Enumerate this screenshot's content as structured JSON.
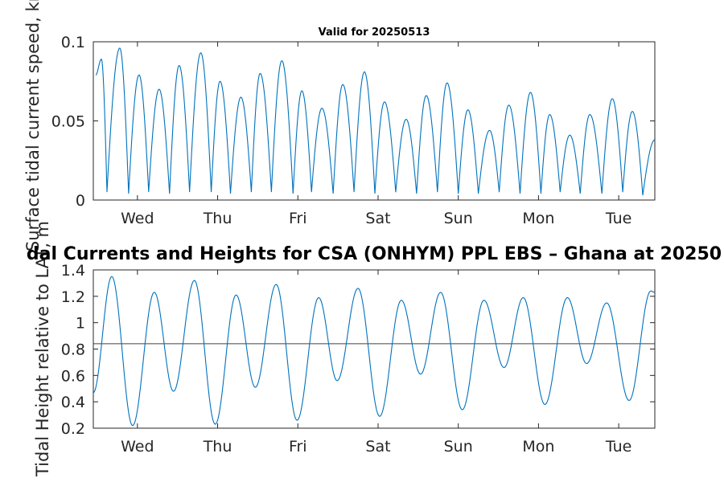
{
  "figure": {
    "title_top": "Valid for 20250513",
    "title_bottom": "dal Currents and Heights for CSA (ONHYM) PPL EBS  – Ghana at 20250"
  },
  "chart_data": [
    {
      "type": "line",
      "title": "Valid for 20250513",
      "ylabel": "Surface tidal current speed, kn",
      "xlabel": "",
      "x_categories": [
        "Wed",
        "Thu",
        "Fri",
        "Sat",
        "Sun",
        "Mon",
        "Tue"
      ],
      "xlim_days": [
        -0.55,
        6.45
      ],
      "ylim": [
        0,
        0.1
      ],
      "yticks": [
        "0",
        "0.05",
        "0.1"
      ],
      "grid": false,
      "line_color": "#0072BD",
      "series": [
        {
          "peaks": [
            {
              "x": -0.52,
              "y": 0.079
            },
            {
              "x": -0.45,
              "y": 0.089
            },
            {
              "x": -0.22,
              "y": 0.096
            },
            {
              "x": 0.02,
              "y": 0.079
            },
            {
              "x": 0.27,
              "y": 0.07
            },
            {
              "x": 0.52,
              "y": 0.085
            },
            {
              "x": 0.79,
              "y": 0.093
            },
            {
              "x": 1.03,
              "y": 0.075
            },
            {
              "x": 1.29,
              "y": 0.065
            },
            {
              "x": 1.53,
              "y": 0.08
            },
            {
              "x": 1.8,
              "y": 0.088
            },
            {
              "x": 2.05,
              "y": 0.069
            },
            {
              "x": 2.3,
              "y": 0.058
            },
            {
              "x": 2.56,
              "y": 0.073
            },
            {
              "x": 2.83,
              "y": 0.081
            },
            {
              "x": 3.08,
              "y": 0.062
            },
            {
              "x": 3.35,
              "y": 0.051
            },
            {
              "x": 3.6,
              "y": 0.066
            },
            {
              "x": 3.86,
              "y": 0.074
            },
            {
              "x": 4.12,
              "y": 0.057
            },
            {
              "x": 4.39,
              "y": 0.044
            },
            {
              "x": 4.63,
              "y": 0.06
            },
            {
              "x": 4.9,
              "y": 0.068
            },
            {
              "x": 5.14,
              "y": 0.054
            },
            {
              "x": 5.39,
              "y": 0.041
            },
            {
              "x": 5.64,
              "y": 0.054
            },
            {
              "x": 5.92,
              "y": 0.064
            },
            {
              "x": 6.17,
              "y": 0.056
            },
            {
              "x": 6.45,
              "y": 0.038
            }
          ],
          "troughs": [
            {
              "x": -0.38,
              "y": 0.005
            },
            {
              "x": -0.11,
              "y": 0.004
            },
            {
              "x": 0.14,
              "y": 0.005
            },
            {
              "x": 0.4,
              "y": 0.004
            },
            {
              "x": 0.65,
              "y": 0.005
            },
            {
              "x": 0.92,
              "y": 0.005
            },
            {
              "x": 1.16,
              "y": 0.004
            },
            {
              "x": 1.42,
              "y": 0.005
            },
            {
              "x": 1.67,
              "y": 0.005
            },
            {
              "x": 1.94,
              "y": 0.004
            },
            {
              "x": 2.17,
              "y": 0.005
            },
            {
              "x": 2.44,
              "y": 0.004
            },
            {
              "x": 2.7,
              "y": 0.005
            },
            {
              "x": 2.96,
              "y": 0.004
            },
            {
              "x": 3.22,
              "y": 0.005
            },
            {
              "x": 3.48,
              "y": 0.004
            },
            {
              "x": 3.74,
              "y": 0.005
            },
            {
              "x": 4.0,
              "y": 0.004
            },
            {
              "x": 4.25,
              "y": 0.004
            },
            {
              "x": 4.51,
              "y": 0.005
            },
            {
              "x": 4.77,
              "y": 0.004
            },
            {
              "x": 5.03,
              "y": 0.004
            },
            {
              "x": 5.27,
              "y": 0.005
            },
            {
              "x": 5.52,
              "y": 0.004
            },
            {
              "x": 5.79,
              "y": 0.004
            },
            {
              "x": 6.05,
              "y": 0.005
            },
            {
              "x": 6.3,
              "y": 0.003
            }
          ]
        }
      ]
    },
    {
      "type": "line",
      "title": "dal Currents and Heights for CSA (ONHYM) PPL EBS  – Ghana at 20250",
      "ylabel": "Tidal Height relative to LAT, m",
      "xlabel": "",
      "x_categories": [
        "Wed",
        "Thu",
        "Fri",
        "Sat",
        "Sun",
        "Mon",
        "Tue"
      ],
      "xlim_days": [
        -0.55,
        6.45
      ],
      "ylim": [
        0.2,
        1.4
      ],
      "yticks": [
        "0.2",
        "0.4",
        "0.6",
        "0.8",
        "1",
        "1.2",
        "1.4"
      ],
      "grid": false,
      "line_color": "#0072BD",
      "reference_line": {
        "y": 0.84,
        "color": "#404040"
      },
      "series": [
        {
          "extrema": [
            {
              "x": -0.55,
              "y": 0.47
            },
            {
              "x": -0.32,
              "y": 1.35
            },
            {
              "x": -0.06,
              "y": 0.22
            },
            {
              "x": 0.21,
              "y": 1.23
            },
            {
              "x": 0.45,
              "y": 0.48
            },
            {
              "x": 0.71,
              "y": 1.32
            },
            {
              "x": 0.97,
              "y": 0.23
            },
            {
              "x": 1.23,
              "y": 1.21
            },
            {
              "x": 1.47,
              "y": 0.51
            },
            {
              "x": 1.73,
              "y": 1.29
            },
            {
              "x": 1.99,
              "y": 0.26
            },
            {
              "x": 2.26,
              "y": 1.19
            },
            {
              "x": 2.49,
              "y": 0.56
            },
            {
              "x": 2.75,
              "y": 1.26
            },
            {
              "x": 3.02,
              "y": 0.29
            },
            {
              "x": 3.29,
              "y": 1.17
            },
            {
              "x": 3.53,
              "y": 0.61
            },
            {
              "x": 3.78,
              "y": 1.23
            },
            {
              "x": 4.05,
              "y": 0.34
            },
            {
              "x": 4.32,
              "y": 1.17
            },
            {
              "x": 4.57,
              "y": 0.66
            },
            {
              "x": 4.81,
              "y": 1.19
            },
            {
              "x": 5.08,
              "y": 0.38
            },
            {
              "x": 5.36,
              "y": 1.19
            },
            {
              "x": 5.6,
              "y": 0.69
            },
            {
              "x": 5.85,
              "y": 1.15
            },
            {
              "x": 6.13,
              "y": 0.41
            },
            {
              "x": 6.4,
              "y": 1.24
            },
            {
              "x": 6.45,
              "y": 1.23
            }
          ]
        }
      ]
    }
  ]
}
